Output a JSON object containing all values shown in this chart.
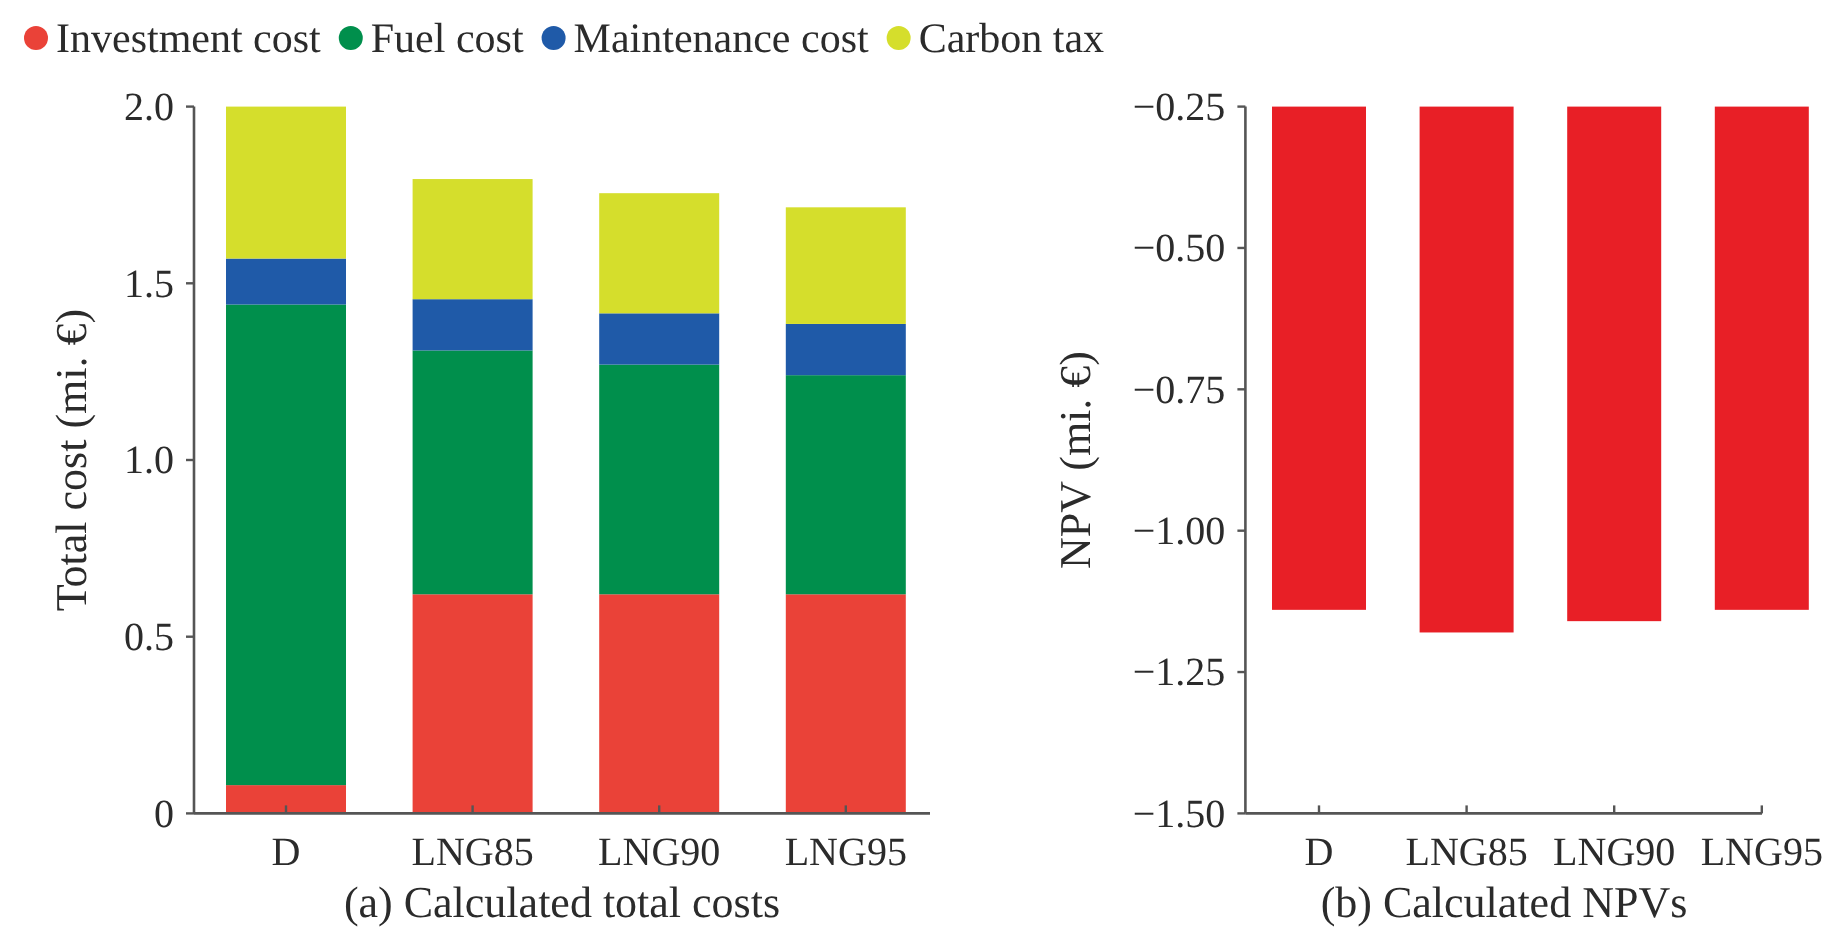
{
  "chart_data": [
    {
      "type": "bar",
      "stacked": true,
      "title": "(a) Calculated total costs",
      "ylabel": "Total cost (mi. €)",
      "categories": [
        "D",
        "LNG85",
        "LNG90",
        "LNG95"
      ],
      "series": [
        {
          "name": "Investment cost",
          "color": "#ea4238",
          "values": [
            0.08,
            0.62,
            0.62,
            0.62
          ]
        },
        {
          "name": "Fuel cost",
          "color": "#008f4c",
          "values": [
            1.36,
            0.69,
            0.65,
            0.62
          ]
        },
        {
          "name": "Maintenance cost",
          "color": "#1f5aa8",
          "values": [
            0.13,
            0.145,
            0.145,
            0.145
          ]
        },
        {
          "name": "Carbon tax",
          "color": "#d5de2c",
          "values": [
            0.43,
            0.34,
            0.34,
            0.33
          ]
        }
      ],
      "ylim": [
        0,
        2
      ],
      "yticks": [
        0,
        {
          "value": 0.5,
          "label": "0.5"
        },
        {
          "value": 1,
          "label": "1.0"
        },
        {
          "value": 1.5,
          "label": "1.5"
        },
        {
          "value": 2,
          "label": "2.0"
        }
      ],
      "legend": "top"
    },
    {
      "type": "bar",
      "title": "(b) Calculated NPVs",
      "ylabel": "NPV (mi. €)",
      "categories": [
        "D",
        "LNG85",
        "LNG90",
        "LNG95"
      ],
      "values": [
        -1.14,
        -1.18,
        -1.16,
        -1.14
      ],
      "color": "#e81f26",
      "ylim": [
        -1.5,
        -0.25
      ],
      "yticks": [
        {
          "value": -1.5,
          "label": "−1.50"
        },
        {
          "value": -1.25,
          "label": "−1.25"
        },
        {
          "value": -1,
          "label": "−1.00"
        },
        {
          "value": -0.75,
          "label": "−0.75"
        },
        {
          "value": -0.5,
          "label": "−0.50"
        },
        {
          "value": -0.25,
          "label": "−0.25"
        }
      ]
    }
  ]
}
